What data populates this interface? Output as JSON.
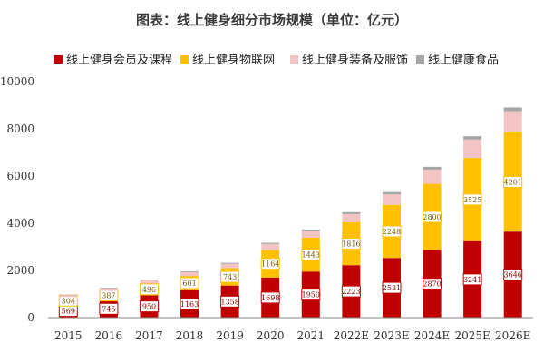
{
  "chart_data": {
    "type": "bar",
    "stacked": true,
    "title": "图表：线上健身细分市场规模（单位：亿元）",
    "categories": [
      "2015",
      "2016",
      "2017",
      "2018",
      "2019",
      "2020",
      "2021",
      "2022E",
      "2023E",
      "2024E",
      "2025E",
      "2026E"
    ],
    "series": [
      {
        "name": "线上健身会员及课程",
        "color": "#c00000",
        "values": [
          569,
          745,
          950,
          1163,
          1358,
          1698,
          1950,
          2223,
          2531,
          2870,
          3241,
          3646
        ]
      },
      {
        "name": "线上健身物联网",
        "color": "#ffc000",
        "values": [
          304,
          387,
          496,
          601,
          743,
          1164,
          1443,
          1816,
          2248,
          2800,
          3525,
          4201
        ]
      },
      {
        "name": "线上健身装备及服饰",
        "color": "#f2c4c4",
        "values": [
          80,
          110,
          140,
          160,
          180,
          260,
          280,
          350,
          440,
          600,
          780,
          900
        ]
      },
      {
        "name": "线上健康食品",
        "color": "#a6a6a6",
        "values": [
          20,
          25,
          30,
          35,
          40,
          50,
          60,
          80,
          100,
          120,
          140,
          160
        ]
      }
    ],
    "ylim": [
      0,
      10000
    ],
    "yticks": [
      0,
      2000,
      4000,
      6000,
      8000,
      10000
    ],
    "legend_position": "top",
    "grid": false,
    "data_labels": true
  }
}
